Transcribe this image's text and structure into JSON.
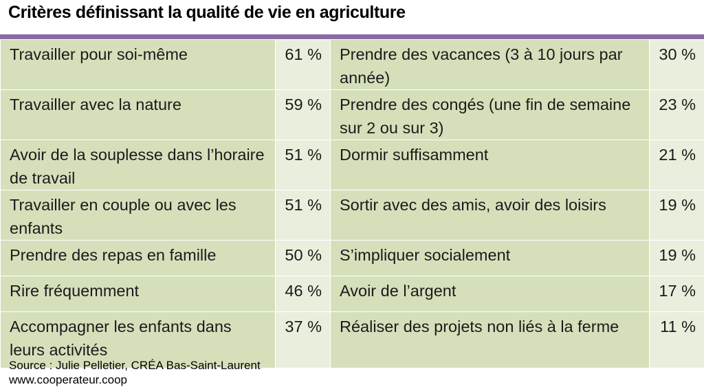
{
  "title": "Critères définissant la qualité de vie en agriculture",
  "colors": {
    "accent_bar": "#8a6aa6",
    "label_bg": "#d5e0bb",
    "value_bg": "#eaefdd"
  },
  "table": {
    "rows": [
      {
        "left_label": "Travailler pour soi-même",
        "left_value": "61 %",
        "right_label": "Prendre des vacances (3 à 10 jours par année)",
        "right_value": "30 %"
      },
      {
        "left_label": "Travailler avec la nature",
        "left_value": "59 %",
        "right_label": "Prendre des congés (une fin de semaine sur 2 ou sur 3)",
        "right_value": "23 %"
      },
      {
        "left_label": "Avoir de la souplesse dans l’horaire de travail",
        "left_value": "51 %",
        "right_label": "Dormir suffisamment",
        "right_value": "21 %"
      },
      {
        "left_label": "Travailler en couple ou avec les enfants",
        "left_value": "51 %",
        "right_label": "Sortir avec des amis, avoir des loisirs",
        "right_value": "19 %"
      },
      {
        "left_label": "Prendre des repas en famille",
        "left_value": "50 %",
        "right_label": "S’impliquer socialement",
        "right_value": "19 %"
      },
      {
        "left_label": "Rire fréquemment",
        "left_value": "46 %",
        "right_label": "Avoir de l’argent",
        "right_value": "17 %"
      },
      {
        "left_label": "Accompagner les enfants dans leurs activités",
        "left_value": "37 %",
        "right_label": "Réaliser des projets non liés à la ferme",
        "right_value": "11 %"
      }
    ]
  },
  "footer": {
    "source": "Source : Julie Pelletier, CRÉA Bas-Saint-Laurent",
    "website": "www.cooperateur.coop"
  }
}
